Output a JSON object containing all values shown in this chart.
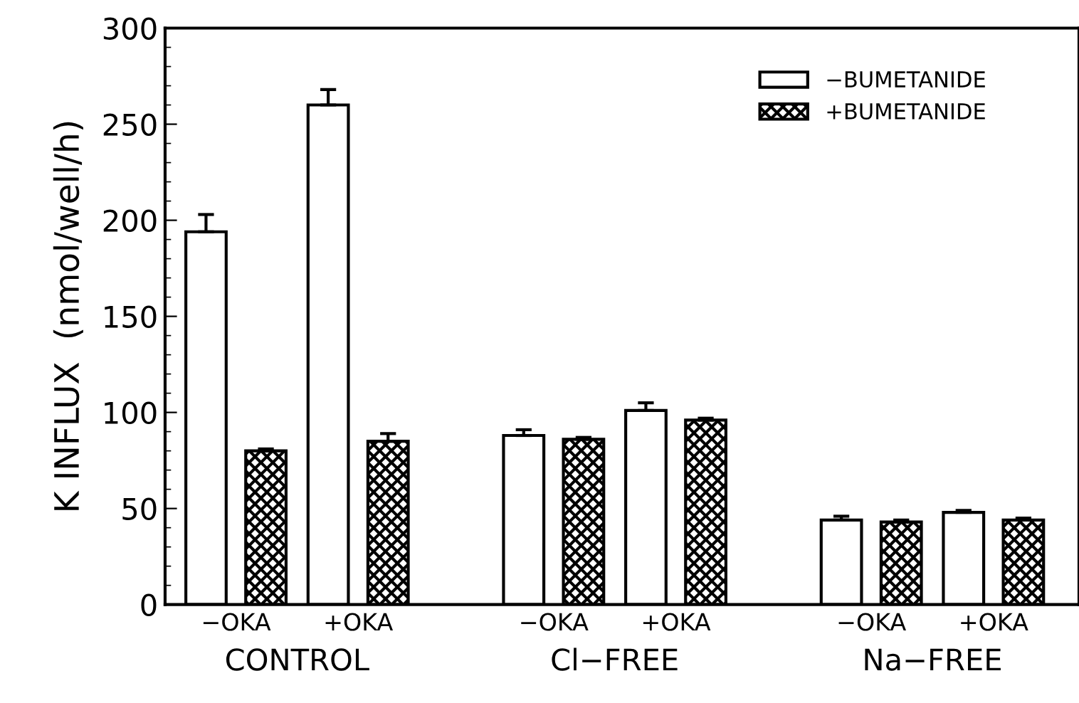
{
  "chart_data": {
    "type": "bar",
    "ylabel": "K INFLUX  (nmol/well/h)",
    "categories": [
      "−OKA",
      "+OKA",
      "−OKA",
      "+OKA",
      "−OKA",
      "+OKA"
    ],
    "series": [
      {
        "name": "−BUMETANIDE",
        "color": "#ffffff",
        "values": [
          194,
          260,
          88,
          101,
          44,
          48
        ],
        "errors": [
          9,
          8,
          3,
          4,
          2,
          1
        ]
      },
      {
        "name": "+BUMETANIDE",
        "color": "#000000",
        "values": [
          80,
          85,
          86,
          96,
          43,
          44
        ],
        "errors": [
          1,
          4,
          1,
          1,
          1,
          1
        ]
      }
    ],
    "annotations": [
      "CONTROL",
      "Cl−FREE",
      "Na−FREE"
    ],
    "ylim": [
      0,
      300
    ],
    "yticks": [
      0,
      50,
      100,
      150,
      200,
      250,
      300
    ],
    "grid": false,
    "legend": "top right"
  }
}
